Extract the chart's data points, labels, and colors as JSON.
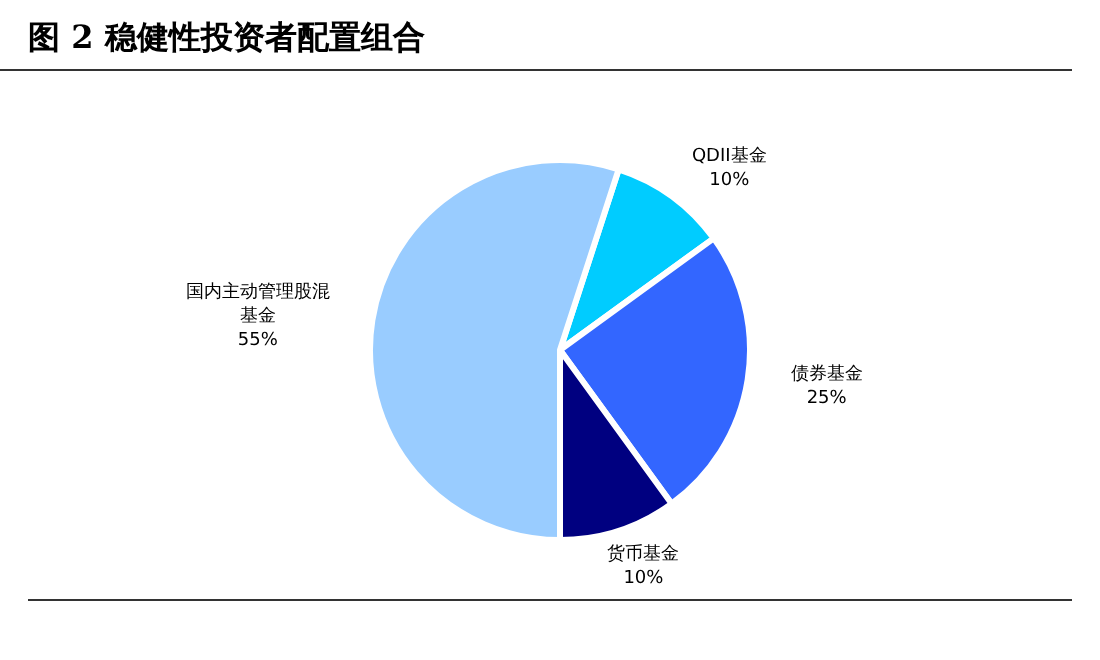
{
  "chart_data": {
    "type": "pie",
    "title": "图 2 稳健性投资者配置组合",
    "categories": [
      "QDII基金",
      "债券基金",
      "货币基金",
      "国内主动管理股混基金"
    ],
    "values": [
      10,
      25,
      10,
      55
    ],
    "colors": [
      "#00ccff",
      "#3366ff",
      "#000080",
      "#99ccff"
    ],
    "value_labels": [
      "10%",
      "25%",
      "10%",
      "55%"
    ]
  }
}
